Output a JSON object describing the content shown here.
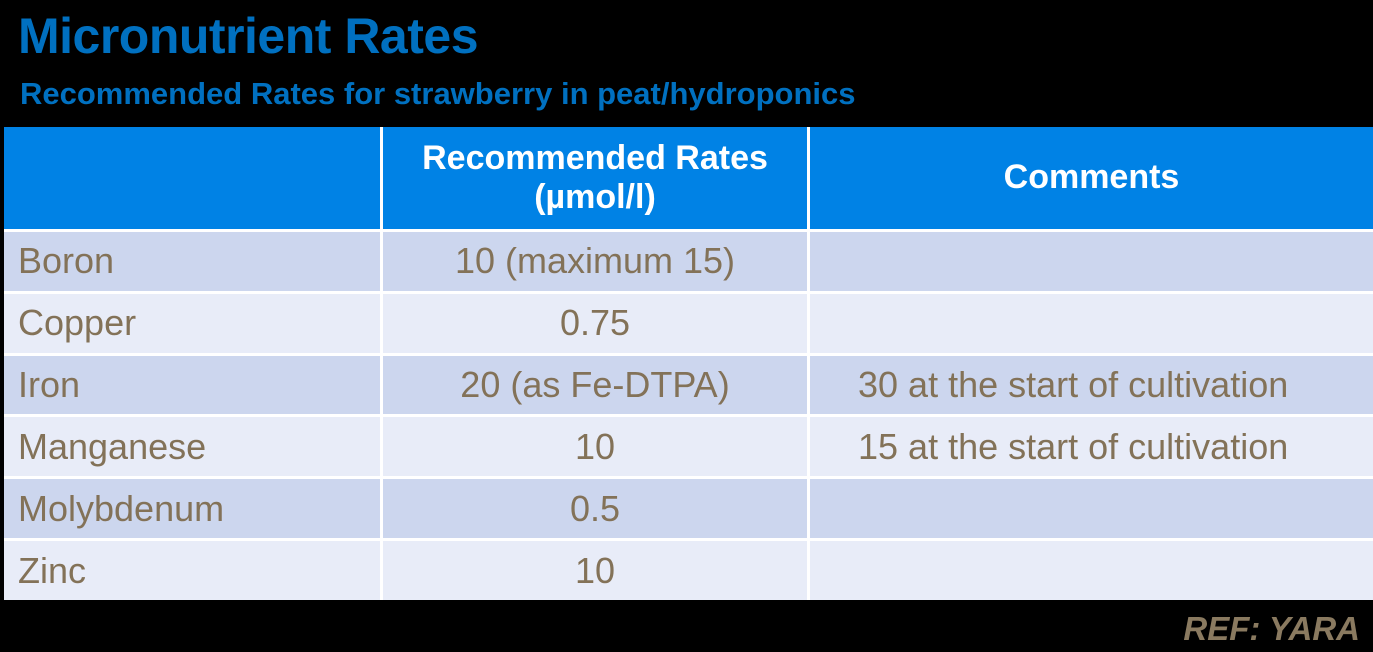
{
  "header": {
    "title": "Micronutrient Rates",
    "subtitle": "Recommended Rates for strawberry in peat/hydroponics"
  },
  "table": {
    "header": {
      "nutrient": "",
      "rates_line1": "Recommended Rates",
      "rates_line2": "(µmol/l)",
      "comments": "Comments"
    },
    "rows": [
      {
        "nutrient": "Boron",
        "rate": "10 (maximum 15)",
        "comment": ""
      },
      {
        "nutrient": "Copper",
        "rate": "0.75",
        "comment": ""
      },
      {
        "nutrient": "Iron",
        "rate": "20 (as Fe-DTPA)",
        "comment": "30 at the start of cultivation"
      },
      {
        "nutrient": "Manganese",
        "rate": "10",
        "comment": "15 at the start of cultivation"
      },
      {
        "nutrient": "Molybdenum",
        "rate": "0.5",
        "comment": ""
      },
      {
        "nutrient": "Zinc",
        "rate": "10",
        "comment": ""
      }
    ]
  },
  "footer": {
    "reference": "REF: YARA"
  },
  "theme": {
    "page_bg": "#000000",
    "title_blue": "#0070c0",
    "header_blue": "#0082e5",
    "row_dark": "#ccd6ee",
    "row_light": "#e8ecf8",
    "body_text": "#837258",
    "ref_text": "#8a7a60",
    "header_text": "#ffffff",
    "grid_gap": "#ffffff"
  }
}
